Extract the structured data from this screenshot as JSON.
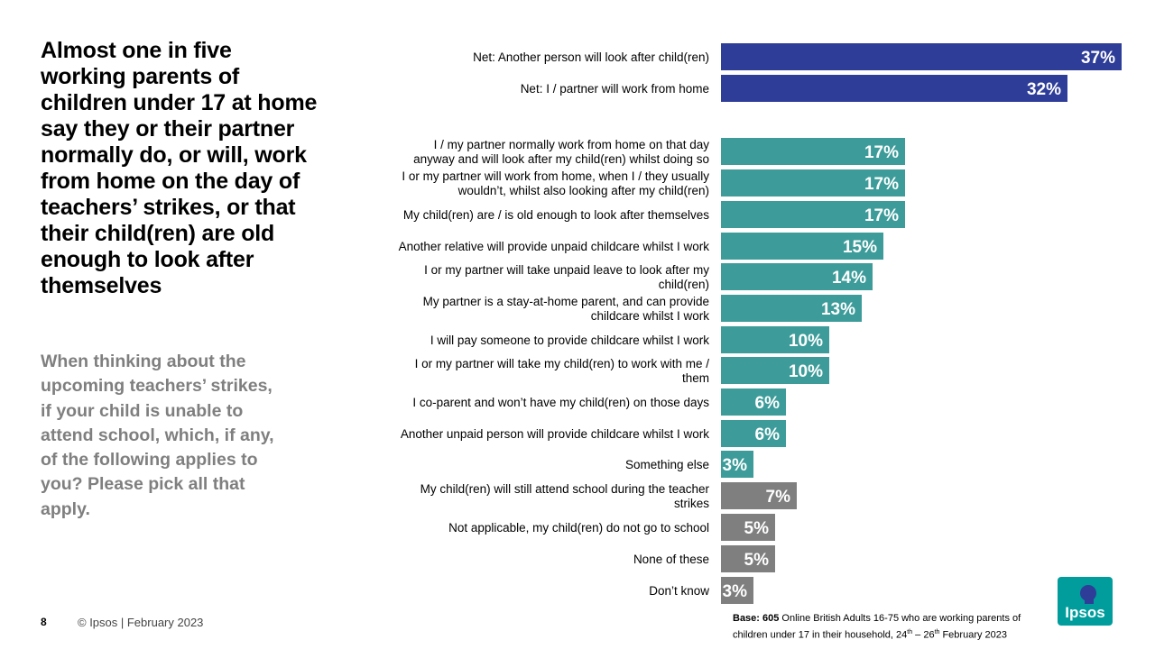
{
  "headline": "Almost one in five working parents of children under 17 at home say they or their partner normally do, or will, work from home on the day of teachers’ strikes, or that their child(ren) are old enough to look after themselves",
  "question": "When thinking about the upcoming teachers’ strikes, if your child is unable to attend school, which, if any, of the following applies to you? Please pick all that apply.",
  "footer": {
    "page_number": "8",
    "copyright": "© Ipsos | February 2023",
    "base_bold": "Base: 605",
    "base_text": " Online British Adults 16-75 who are working parents of children under 17 in their household, 24",
    "base_sup1": "th",
    "base_mid": " – 26",
    "base_sup2": "th",
    "base_end": " February 2023"
  },
  "logo": {
    "text": "Ipsos",
    "color": "#009d9c"
  },
  "colors": {
    "net": "#2e3d98",
    "item": "#3d9c9a",
    "other": "#7f7f7f"
  },
  "chart_data": {
    "type": "bar",
    "orientation": "horizontal",
    "xlim": [
      0,
      37
    ],
    "unit": "%",
    "categories": [
      "Net: Another person will look after child(ren)",
      "Net: I / partner will work from home",
      "I / my partner normally work from home on that day anyway and will look after my child(ren) whilst doing so",
      "I or my partner will work from home, when I / they usually wouldn’t, whilst also looking after my child(ren)",
      "My child(ren) are / is old enough to look after themselves",
      "Another relative will provide unpaid childcare whilst I work",
      "I or my partner will take unpaid leave to look after my child(ren)",
      "My partner is a stay-at-home parent, and can provide childcare whilst I work",
      "I will pay someone to provide childcare whilst I work",
      "I or my partner will take my child(ren) to work with me / them",
      "I co-parent and won’t have my child(ren) on those days",
      "Another unpaid person will provide childcare whilst I work",
      "Something else",
      "My child(ren) will still attend school during the teacher strikes",
      "Not applicable, my child(ren) do not go to school",
      "None of these",
      "Don’t know"
    ],
    "label_lines": [
      [
        "Net: Another person will look after child(ren)"
      ],
      [
        "Net: I / partner will work from home"
      ],
      [
        "I / my partner normally work from home on that day",
        "anyway and will look after my child(ren) whilst doing so"
      ],
      [
        "I or my partner will work from home, when I / they usually",
        "wouldn’t, whilst also looking after my child(ren)"
      ],
      [
        "My child(ren) are / is old enough to look after themselves"
      ],
      [
        "Another relative will provide unpaid childcare whilst I work"
      ],
      [
        "I or my partner will take unpaid leave to look after my",
        "child(ren)"
      ],
      [
        "My partner is a stay-at-home parent, and can provide",
        "childcare whilst I work"
      ],
      [
        "I will pay someone to provide childcare whilst I work"
      ],
      [
        "I or my partner will take my child(ren) to work with me /",
        "them"
      ],
      [
        "I co-parent and won’t have my child(ren) on those days"
      ],
      [
        "Another unpaid person will provide childcare whilst I work"
      ],
      [
        "Something else"
      ],
      [
        "My child(ren) will still attend school during the teacher",
        "strikes"
      ],
      [
        "Not applicable, my child(ren) do not go to school"
      ],
      [
        "None of these"
      ],
      [
        "Don’t know"
      ]
    ],
    "values": [
      37,
      32,
      17,
      17,
      17,
      15,
      14,
      13,
      10,
      10,
      6,
      6,
      3,
      7,
      5,
      5,
      3
    ],
    "value_labels": [
      "37%",
      "32%",
      "17%",
      "17%",
      "17%",
      "15%",
      "14%",
      "13%",
      "10%",
      "10%",
      "6%",
      "6%",
      "3%",
      "7%",
      "5%",
      "5%",
      "3%"
    ],
    "groups": [
      "net",
      "net",
      "item",
      "item",
      "item",
      "item",
      "item",
      "item",
      "item",
      "item",
      "item",
      "item",
      "item",
      "other",
      "other",
      "other",
      "other"
    ]
  }
}
